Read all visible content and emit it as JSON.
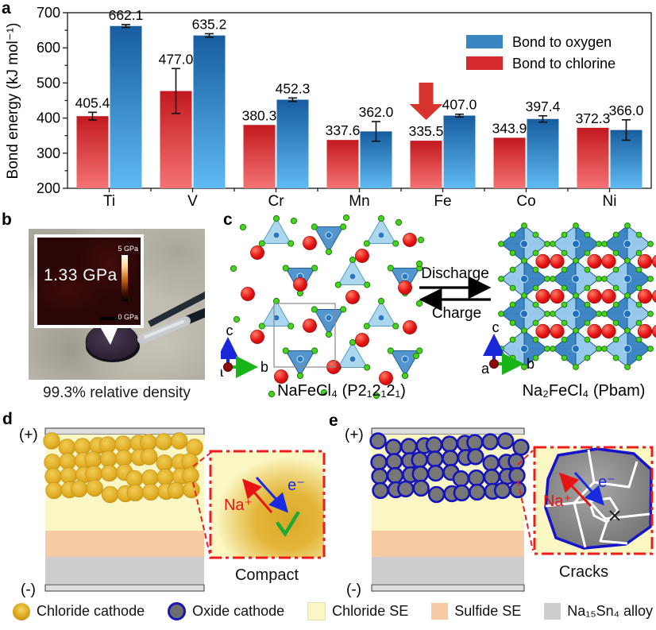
{
  "figure": {
    "panel_labels": {
      "a": "a",
      "b": "b",
      "c": "c",
      "d": "d",
      "e": "e"
    }
  },
  "chart_data": {
    "type": "bar",
    "categories": [
      "Ti",
      "V",
      "Cr",
      "Mn",
      "Fe",
      "Co",
      "Ni"
    ],
    "series": [
      {
        "name": "Bond to chlorine",
        "values": [
          405.4,
          477.0,
          380.3,
          337.6,
          335.5,
          343.9,
          372.3
        ],
        "errors": [
          11,
          64,
          0,
          0,
          0,
          0,
          0
        ],
        "color_top": "#c2191f",
        "color_bottom": "#f57373",
        "legend_color": "#d62b2f"
      },
      {
        "name": "Bond to oxygen",
        "values": [
          662.1,
          635.2,
          452.3,
          362.0,
          407.0,
          397.4,
          366.0
        ],
        "errors": [
          4,
          5,
          5,
          28,
          4,
          9,
          29
        ],
        "color_top": "#175d9f",
        "color_bottom": "#5fbaf3",
        "legend_color": "#3a86c2"
      }
    ],
    "legend_order": [
      1,
      0
    ],
    "ylabel": "Bond energy (kJ mol⁻¹)",
    "ylim": [
      200,
      700
    ],
    "yticks": [
      200,
      300,
      400,
      500,
      600,
      700
    ],
    "annotation": {
      "shape": "down-arrow",
      "category": "Fe",
      "color": "#d6342c"
    }
  },
  "panel_b": {
    "inset_value": "1.33 GPa",
    "scale_max_label": "5 GPa",
    "scale_min_label": "0 GPa",
    "caption": "99.3% relative density"
  },
  "panel_c": {
    "reaction_forward": "Discharge",
    "reaction_backward": "Charge",
    "left_structure_label": "NaFeCl₄ (P2₁2₁2₁)",
    "right_structure_label": "Na₂FeCl₄ (Pbam)",
    "axis_up": "c",
    "axis_right": "b",
    "axis_origin": "a"
  },
  "panel_d": {
    "electrode_positive": "(+)",
    "electrode_negative": "(-)",
    "ion_label": "Na⁺",
    "electron_label": "e⁻",
    "caption": "Compact"
  },
  "panel_e": {
    "electrode_positive": "(+)",
    "electrode_negative": "(-)",
    "ion_label": "Na⁺",
    "electron_label": "e⁻",
    "caption": "Cracks"
  },
  "bottom_legend": {
    "items": [
      {
        "swatch": "chloride-cathode-sphere",
        "label": "Chloride cathode"
      },
      {
        "swatch": "oxide-cathode-sphere",
        "label": "Oxide cathode"
      },
      {
        "swatch": "chloride-se-square",
        "label": "Chloride SE"
      },
      {
        "swatch": "sulfide-se-square",
        "label": "Sulfide SE"
      },
      {
        "swatch": "alloy-square",
        "label": "Na₁₅Sn₄ alloy"
      }
    ]
  }
}
